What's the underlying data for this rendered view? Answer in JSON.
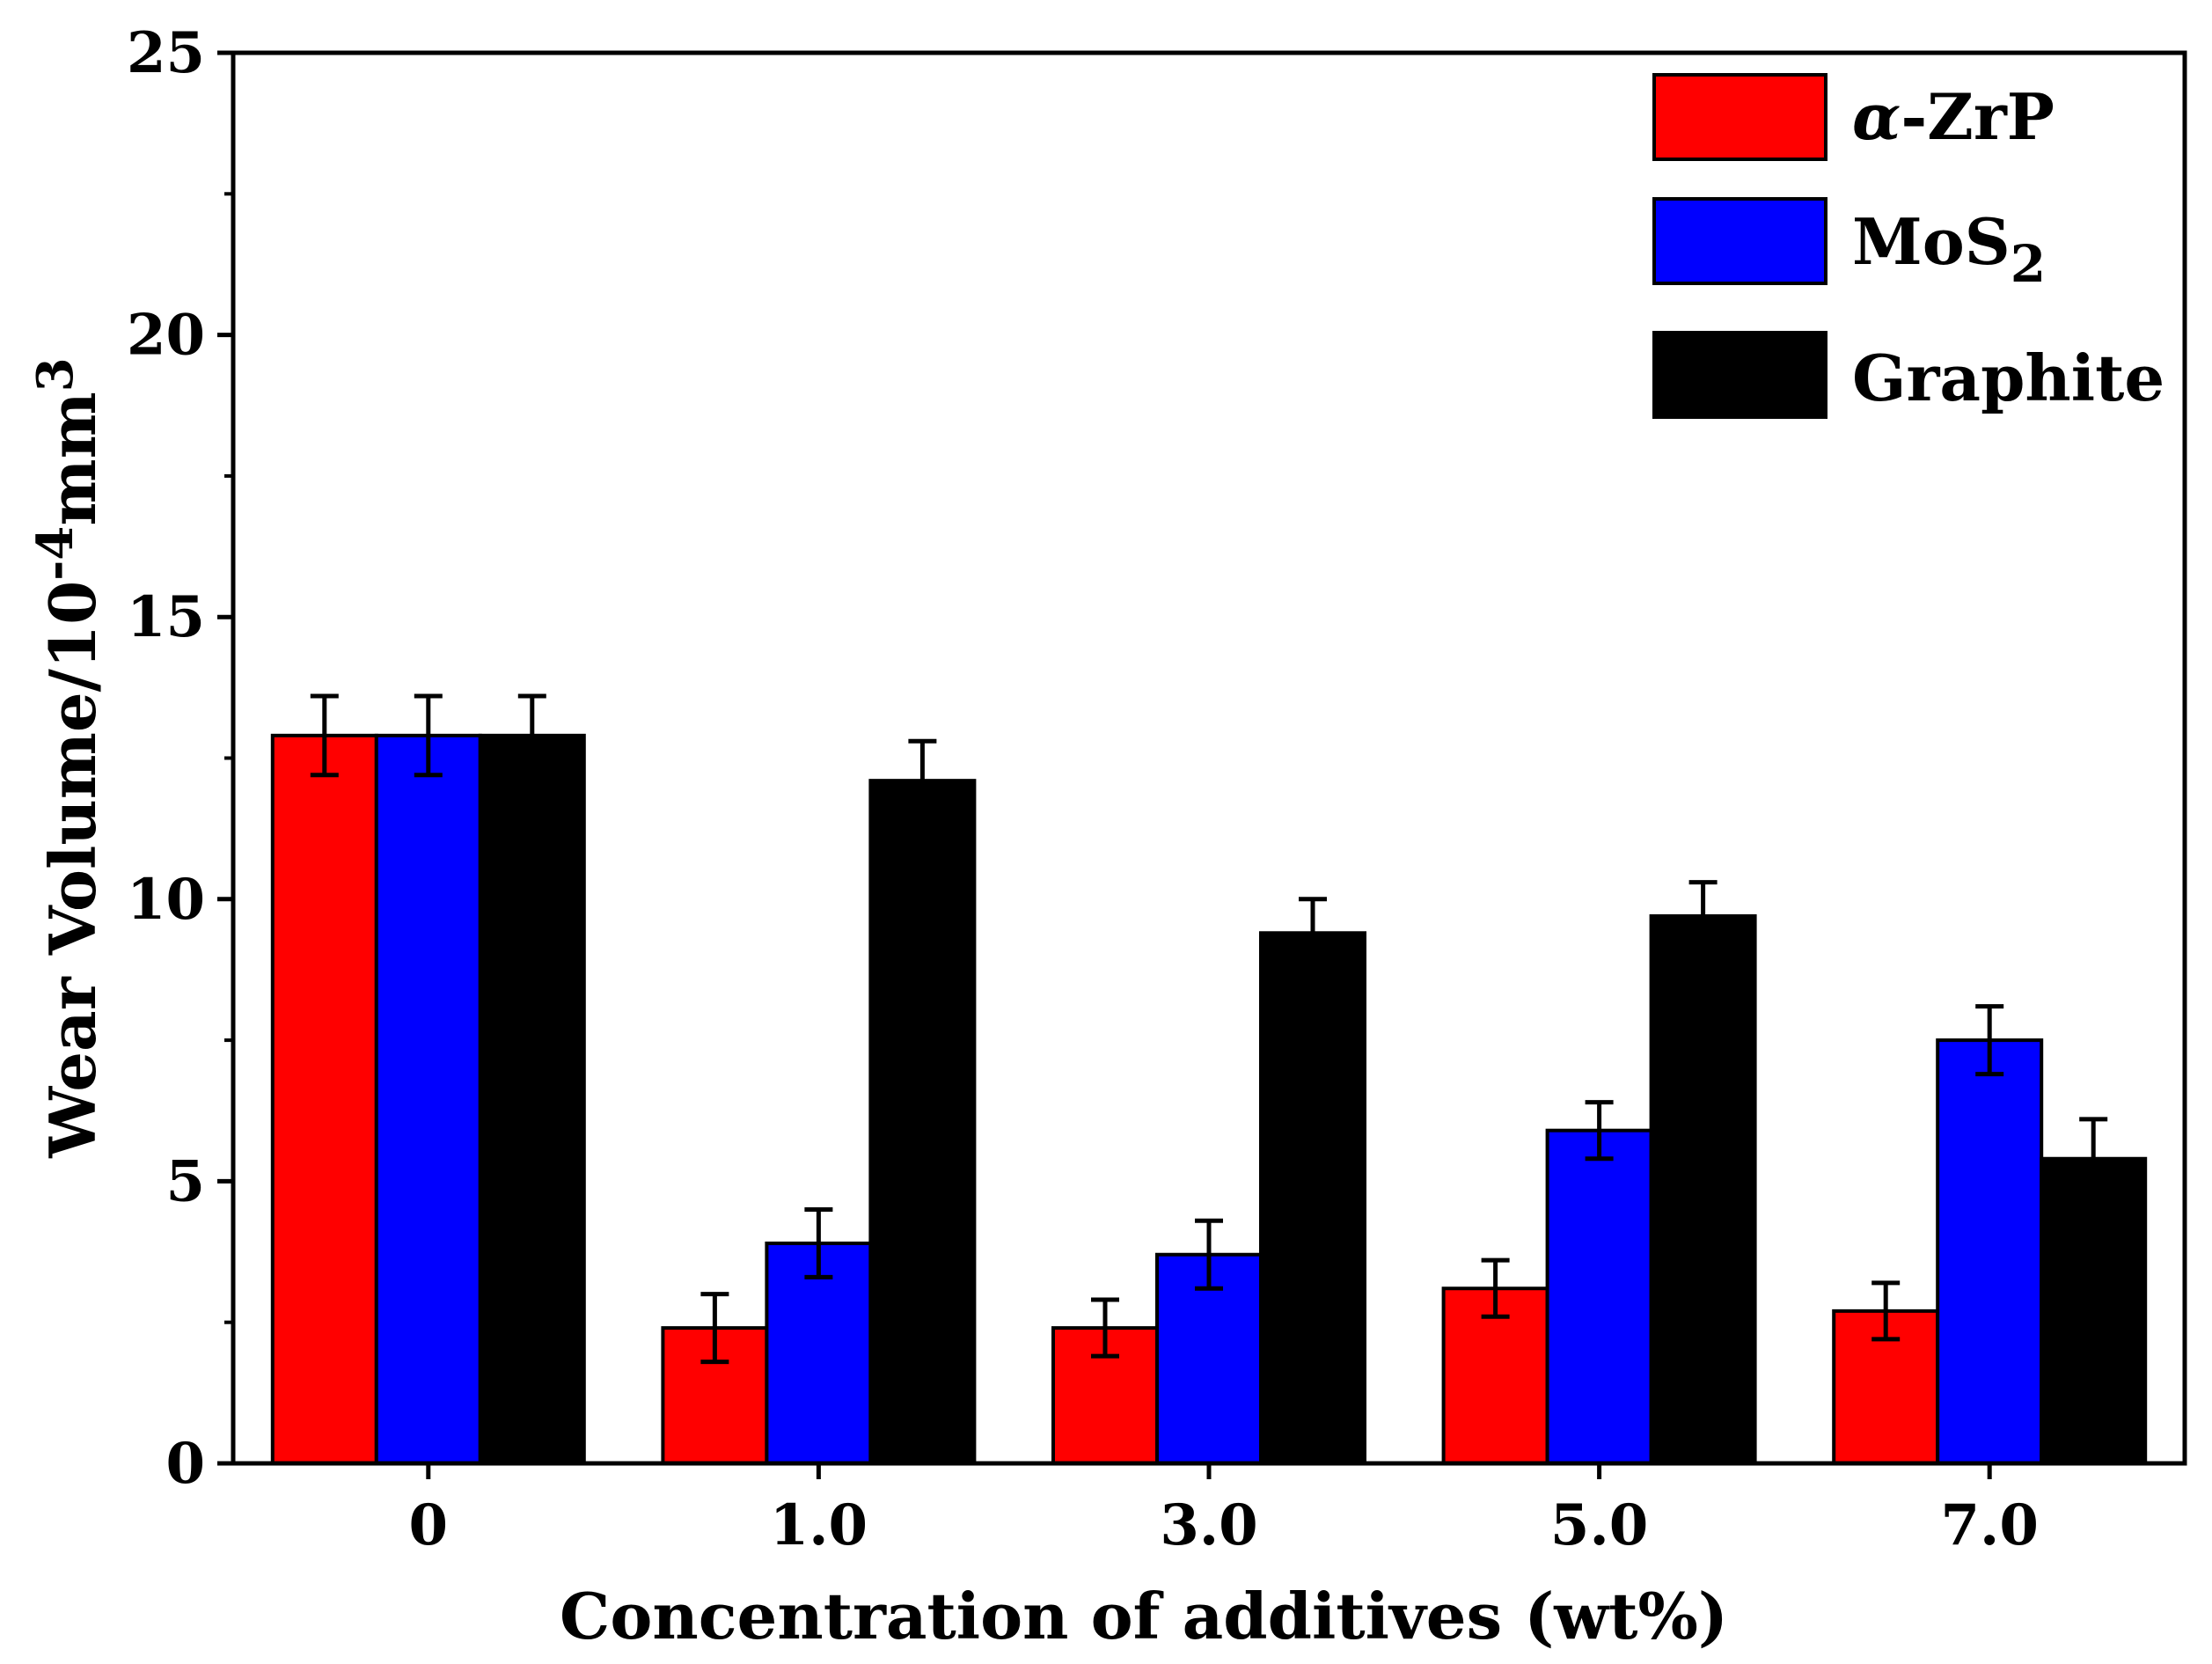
{
  "chart_data": {
    "type": "bar",
    "title": "",
    "xlabel": "Concentration of additives (wt%)",
    "ylabel": {
      "main": "Wear Volume/10",
      "exp": "-4",
      "unit": "mm",
      "unit_exp": "3"
    },
    "categories": [
      "0",
      "1.0",
      "3.0",
      "5.0",
      "7.0"
    ],
    "ylim": [
      0,
      25
    ],
    "yticks": [
      "0",
      "5",
      "10",
      "15",
      "20",
      "25"
    ],
    "ytick_values": [
      0,
      5,
      10,
      15,
      20,
      25
    ],
    "legend_position": "top-right",
    "series": [
      {
        "name": "α-ZrP",
        "legend_greek": "α",
        "legend_rest": "-ZrP",
        "color": "#ff0000",
        "values": [
          12.9,
          2.4,
          2.4,
          3.1,
          2.7
        ],
        "errors": [
          0.7,
          0.6,
          0.5,
          0.5,
          0.5
        ]
      },
      {
        "name": "MoS2",
        "legend_base": "MoS",
        "legend_sub": "2",
        "color": "#0000ff",
        "values": [
          12.9,
          3.9,
          3.7,
          5.9,
          7.5
        ],
        "errors": [
          0.7,
          0.6,
          0.6,
          0.5,
          0.6
        ]
      },
      {
        "name": "Graphite",
        "color": "#000000",
        "values": [
          12.9,
          12.1,
          9.4,
          9.7,
          5.4
        ],
        "errors": [
          0.7,
          0.7,
          0.6,
          0.6,
          0.7
        ]
      }
    ]
  }
}
